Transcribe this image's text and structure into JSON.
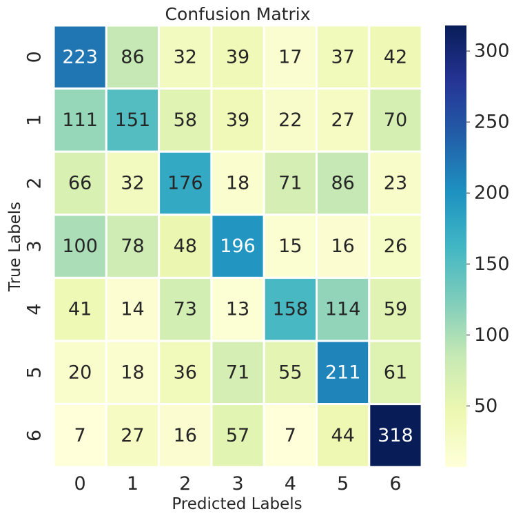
{
  "chart_data": {
    "type": "heatmap",
    "title": "Confusion Matrix",
    "xlabel": "Predicted Labels",
    "ylabel": "True Labels",
    "x_categories": [
      "0",
      "1",
      "2",
      "3",
      "4",
      "5",
      "6"
    ],
    "y_categories": [
      "0",
      "1",
      "2",
      "3",
      "4",
      "5",
      "6"
    ],
    "values": [
      [
        223,
        86,
        32,
        39,
        17,
        37,
        42
      ],
      [
        111,
        151,
        58,
        39,
        22,
        27,
        70
      ],
      [
        66,
        32,
        176,
        18,
        71,
        86,
        23
      ],
      [
        100,
        78,
        48,
        196,
        15,
        16,
        26
      ],
      [
        41,
        14,
        73,
        13,
        158,
        114,
        59
      ],
      [
        20,
        18,
        36,
        71,
        55,
        211,
        61
      ],
      [
        7,
        27,
        16,
        57,
        7,
        44,
        318
      ]
    ],
    "colormap": "YlGnBu",
    "colorbar": {
      "vmin": 7,
      "vmax": 318,
      "ticks": [
        50,
        100,
        150,
        200,
        250,
        300
      ],
      "tick_labels": [
        "50",
        "100",
        "150",
        "200",
        "250",
        "300"
      ]
    },
    "annotations": true,
    "grid": false
  }
}
